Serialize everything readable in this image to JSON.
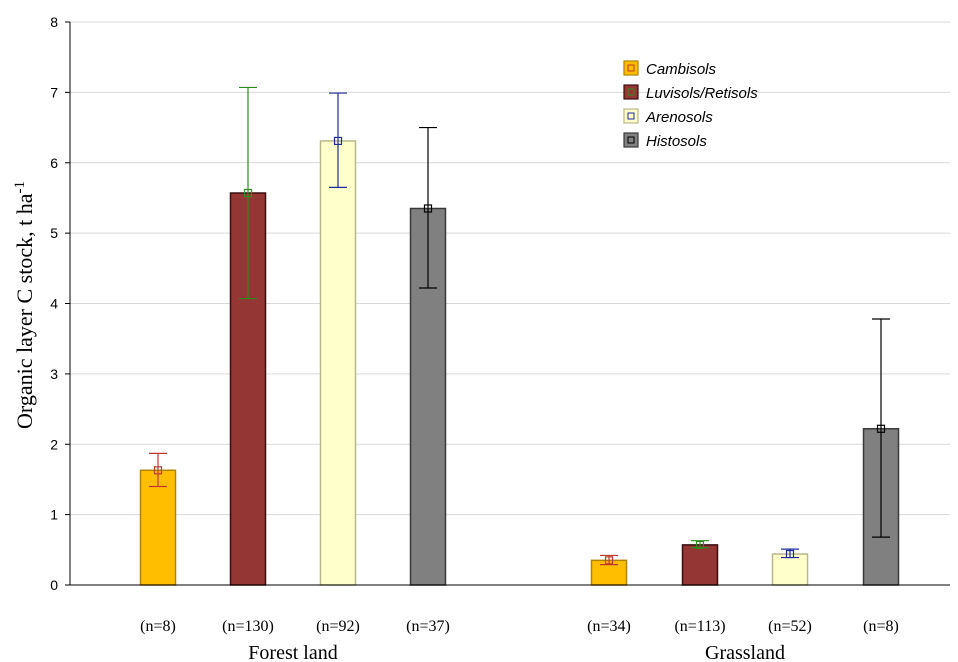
{
  "chart_data": {
    "type": "bar",
    "ylabel": "Organic layer C stock, t ha",
    "ylabel_superscript": "-1",
    "ylim": [
      0,
      8
    ],
    "yticks": [
      "0",
      "1",
      "2",
      "3",
      "4",
      "5",
      "6",
      "7",
      "8"
    ],
    "grid": "horizontal",
    "legend_position": "top-right",
    "groups": [
      {
        "label": "Forest land",
        "bars": [
          {
            "series": "Cambisols",
            "n_label": "(n=8)",
            "value": 1.63,
            "err_low": 1.4,
            "err_high": 1.87
          },
          {
            "series": "Luvisols/Retisols",
            "n_label": "(n=130)",
            "value": 5.57,
            "err_low": 4.07,
            "err_high": 7.07
          },
          {
            "series": "Arenosols",
            "n_label": "(n=92)",
            "value": 6.31,
            "err_low": 5.65,
            "err_high": 6.99
          },
          {
            "series": "Histosols",
            "n_label": "(n=37)",
            "value": 5.35,
            "err_low": 4.22,
            "err_high": 6.5
          }
        ]
      },
      {
        "label": "Grassland",
        "bars": [
          {
            "series": "Cambisols",
            "n_label": "(n=34)",
            "value": 0.35,
            "err_low": 0.29,
            "err_high": 0.42
          },
          {
            "series": "Luvisols/Retisols",
            "n_label": "(n=113)",
            "value": 0.57,
            "err_low": 0.53,
            "err_high": 0.63
          },
          {
            "series": "Arenosols",
            "n_label": "(n=52)",
            "value": 0.44,
            "err_low": 0.39,
            "err_high": 0.51
          },
          {
            "series": "Histosols",
            "n_label": "(n=8)",
            "value": 2.22,
            "err_low": 0.68,
            "err_high": 3.78
          }
        ]
      }
    ],
    "series": [
      {
        "name": "Cambisols",
        "fill": "#FFBF00",
        "stroke": "#B08300",
        "marker": "#C0392B"
      },
      {
        "name": "Luvisols/Retisols",
        "fill": "#943634",
        "stroke": "#3a0f0f",
        "marker": "#2E8B1E"
      },
      {
        "name": "Arenosols",
        "fill": "#FFFFCC",
        "stroke": "#B8B88A",
        "marker": "#1F2C9E"
      },
      {
        "name": "Histosols",
        "fill": "#808080",
        "stroke": "#3a3a3a",
        "marker": "#000000"
      }
    ]
  }
}
